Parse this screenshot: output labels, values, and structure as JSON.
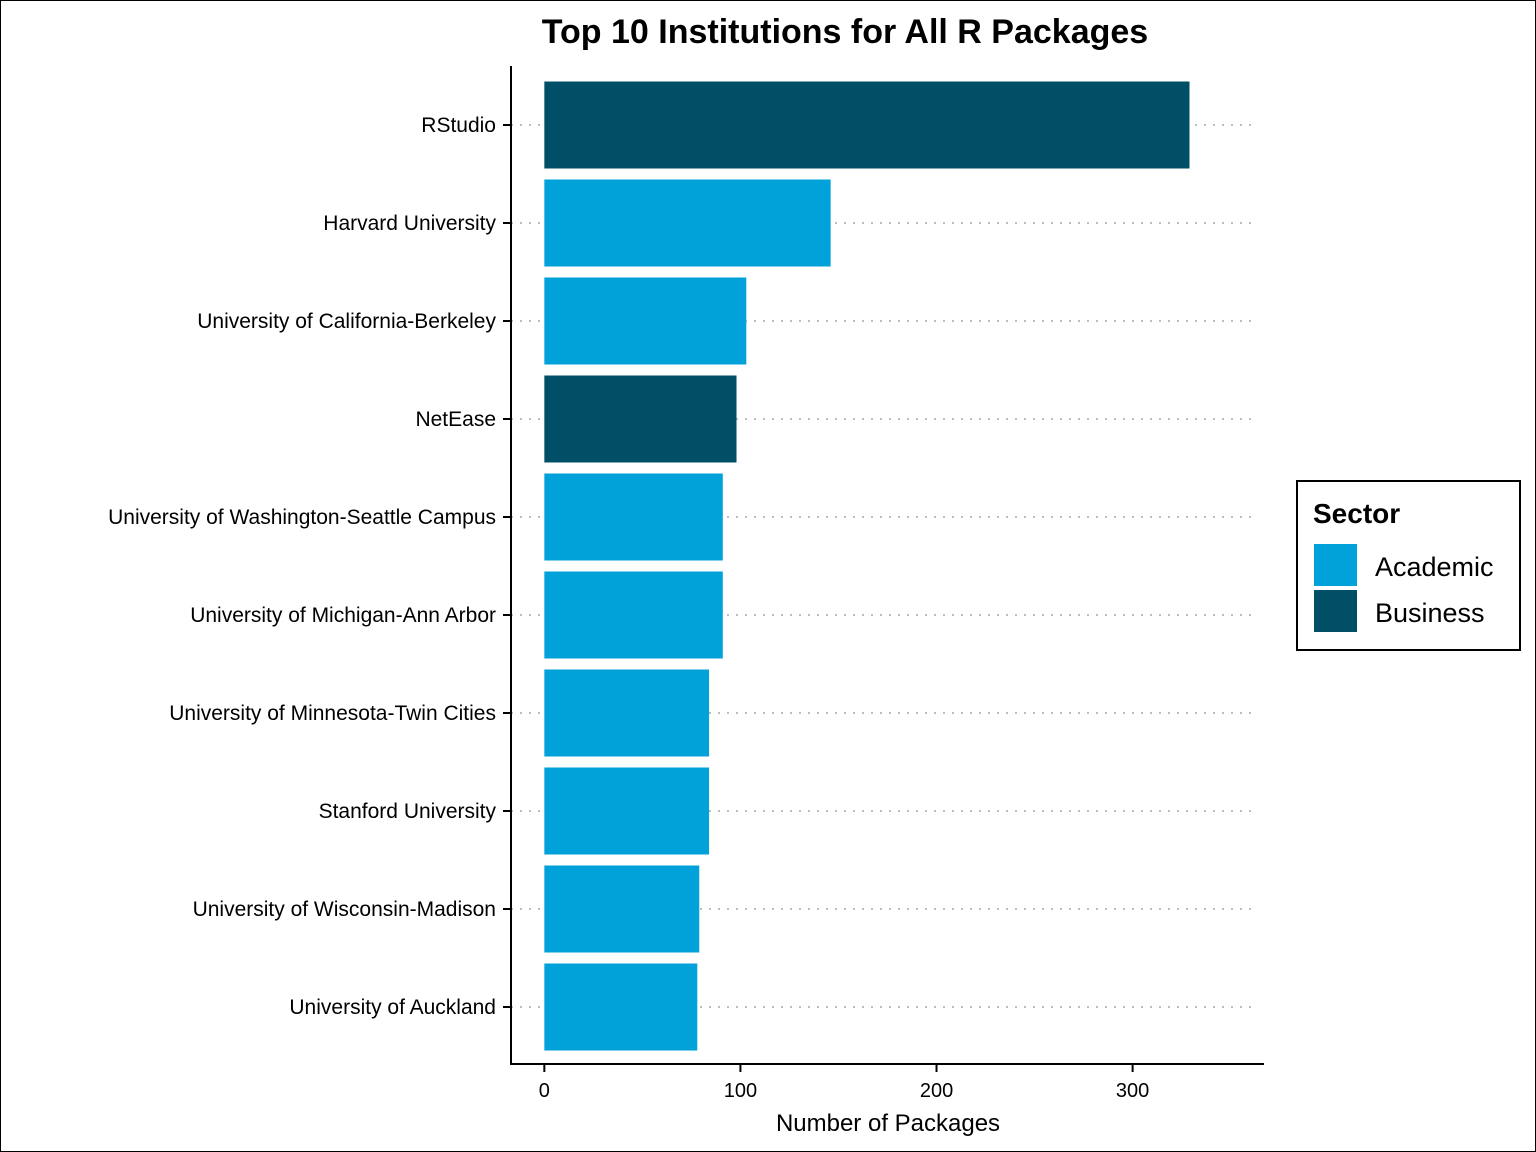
{
  "chart_data": {
    "type": "bar",
    "orientation": "horizontal",
    "title": "Top 10 Institutions for All R Packages",
    "xlabel": "Number of Packages",
    "ylabel": "",
    "xlim": [
      -17,
      367
    ],
    "xticks": [
      0,
      100,
      200,
      300
    ],
    "grid": "dotted horizontal lines at each category",
    "legend_position": "right",
    "categories": [
      "RStudio",
      "Harvard University",
      "University of California-Berkeley",
      "NetEase",
      "University of Washington-Seattle Campus",
      "University of Michigan-Ann Arbor",
      "University of Minnesota-Twin Cities",
      "Stanford University",
      "University of Wisconsin-Madison",
      "University of Auckland"
    ],
    "values": [
      329,
      146,
      103,
      98,
      91,
      91,
      84,
      84,
      79,
      78
    ],
    "sectors": [
      "Business",
      "Academic",
      "Academic",
      "Business",
      "Academic",
      "Academic",
      "Academic",
      "Academic",
      "Academic",
      "Academic"
    ],
    "legend": {
      "title": "Sector",
      "items": [
        {
          "name": "Academic",
          "color": "#00A2D9"
        },
        {
          "name": "Business",
          "color": "#004F66"
        }
      ]
    }
  }
}
